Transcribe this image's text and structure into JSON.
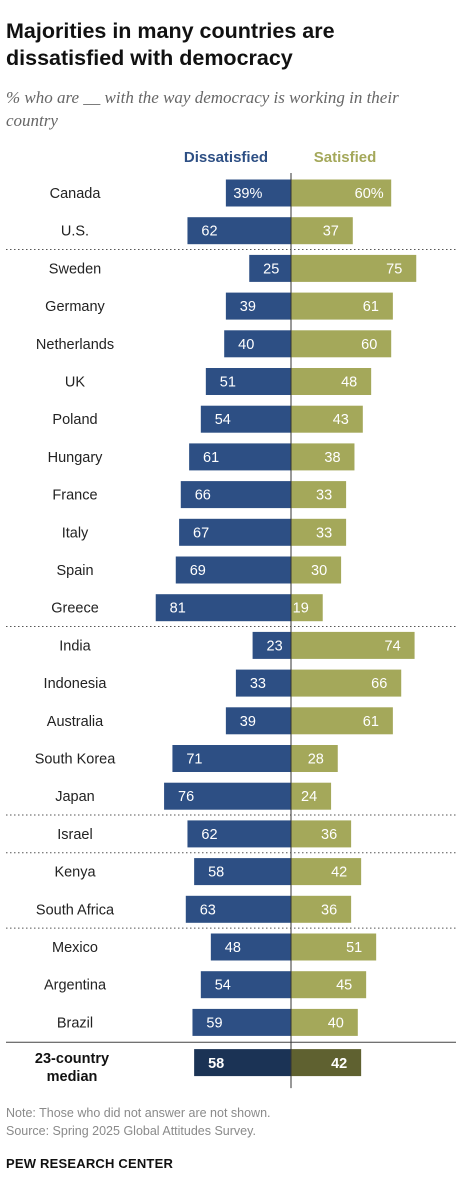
{
  "title": "Majorities in many countries are dissatisfied with democracy",
  "subtitle": "% who are __ with the way democracy is working in their country",
  "note": "Note: Those who did not answer are not shown.",
  "source": "Source: Spring 2025 Global Attitudes Survey.",
  "brand": "PEW RESEARCH CENTER",
  "colors": {
    "dissatisfied": "#2d4f84",
    "satisfied": "#a4a85a",
    "dissatisfied_median": "#1b3355",
    "satisfied_median": "#5f6130"
  },
  "chart_data": {
    "type": "bar",
    "orientation": "horizontal-diverging",
    "series": [
      {
        "name": "Dissatisfied",
        "values": [
          39,
          62,
          25,
          39,
          40,
          51,
          54,
          61,
          66,
          67,
          69,
          81,
          23,
          33,
          39,
          71,
          76,
          62,
          58,
          63,
          48,
          54,
          59
        ]
      },
      {
        "name": "Satisfied",
        "values": [
          60,
          37,
          75,
          61,
          60,
          48,
          43,
          38,
          33,
          33,
          30,
          19,
          74,
          66,
          61,
          28,
          24,
          36,
          42,
          36,
          51,
          45,
          40
        ]
      }
    ],
    "categories": [
      "Canada",
      "U.S.",
      "Sweden",
      "Germany",
      "Netherlands",
      "UK",
      "Poland",
      "Hungary",
      "France",
      "Italy",
      "Spain",
      "Greece",
      "India",
      "Indonesia",
      "Australia",
      "South Korea",
      "Japan",
      "Israel",
      "Kenya",
      "South Africa",
      "Mexico",
      "Argentina",
      "Brazil"
    ],
    "first_label_suffix": "%",
    "groups": [
      [
        "Canada",
        "U.S."
      ],
      [
        "Sweden",
        "Germany",
        "Netherlands",
        "UK",
        "Poland",
        "Hungary",
        "France",
        "Italy",
        "Spain",
        "Greece"
      ],
      [
        "India",
        "Indonesia",
        "Australia",
        "South Korea",
        "Japan"
      ],
      [
        "Israel"
      ],
      [
        "Kenya",
        "South Africa"
      ],
      [
        "Mexico",
        "Argentina",
        "Brazil"
      ]
    ],
    "median": {
      "label_lines": [
        "23-country",
        "median"
      ],
      "dissatisfied": 58,
      "satisfied": 42
    }
  }
}
